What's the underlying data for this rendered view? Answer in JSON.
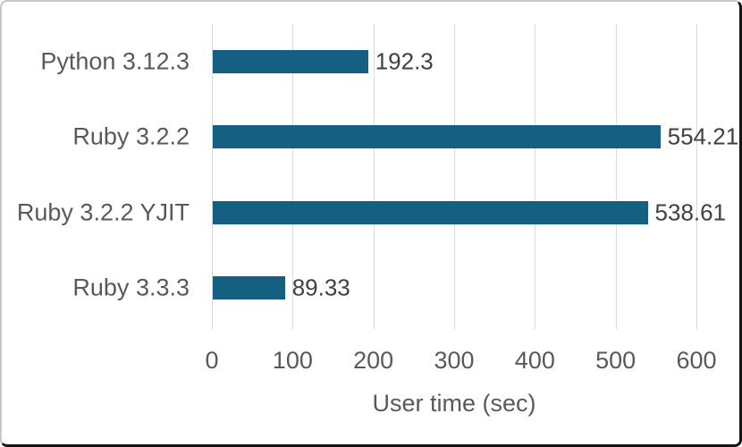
{
  "frame": {
    "background": "#ffffff",
    "border_light": "#c8c8c8",
    "border_dark": "#161616"
  },
  "chart_data": {
    "type": "bar",
    "orientation": "horizontal",
    "title": "",
    "categories": [
      "Python 3.12.3",
      "Ruby 3.2.2",
      "Ruby 3.2.2 YJIT",
      "Ruby 3.3.3"
    ],
    "values": [
      192.3,
      554.21,
      538.61,
      89.33
    ],
    "value_labels": [
      "192.3",
      "554.21",
      "538.61",
      "89.33"
    ],
    "xlabel": "User time (sec)",
    "ylabel": "",
    "xlim": [
      0,
      600
    ],
    "xticks": [
      0,
      100,
      200,
      300,
      400,
      500,
      600
    ],
    "grid": true,
    "legend": "none",
    "colors": {
      "bar": "#156082",
      "gridline": "#d9d9d9",
      "axis_text": "#595959",
      "data_label": "#404040"
    }
  }
}
